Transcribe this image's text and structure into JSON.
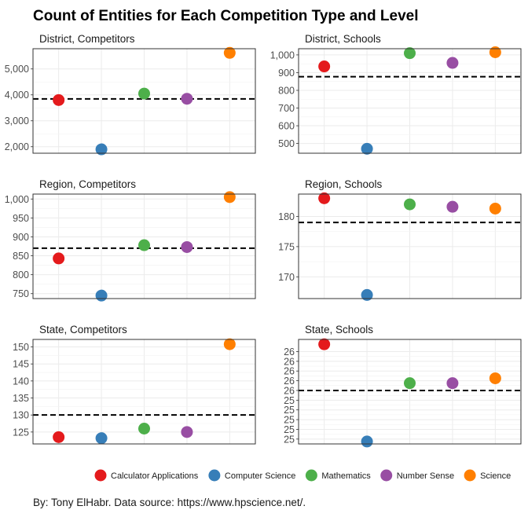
{
  "title": "Count of Entities for Each Competition Type and Level",
  "caption": "By: Tony ElHabr. Data source: https://www.hpscience.net/.",
  "chart_data": {
    "type": "scatter",
    "categories": [
      "Calculator Applications",
      "Computer Science",
      "Mathematics",
      "Number Sense",
      "Science"
    ],
    "colors": [
      "#e41a1c",
      "#377eb8",
      "#4daf4a",
      "#984ea3",
      "#ff7f00"
    ],
    "legend_position": "bottom",
    "grid": true,
    "panels": [
      {
        "label": "District, Competitors",
        "values": [
          3800,
          1900,
          4050,
          3850,
          5620
        ],
        "mean_line": 3844,
        "ylim": [
          1750,
          5780
        ],
        "ticks": [
          2000,
          3000,
          4000,
          5000
        ],
        "tick_labels": [
          "2,000",
          "3,000",
          "4,000",
          "5,000"
        ]
      },
      {
        "label": "District, Schools",
        "values": [
          935,
          470,
          1010,
          955,
          1015
        ],
        "mean_line": 877,
        "ylim": [
          445,
          1035
        ],
        "ticks": [
          500,
          600,
          700,
          800,
          900,
          1000
        ],
        "tick_labels": [
          "500",
          "600",
          "700",
          "800",
          "900",
          "1,000"
        ]
      },
      {
        "label": "Region, Competitors",
        "values": [
          843,
          745,
          878,
          873,
          1005
        ],
        "mean_line": 870,
        "ylim": [
          737,
          1013
        ],
        "ticks": [
          750,
          800,
          850,
          900,
          950,
          1000
        ],
        "tick_labels": [
          "750",
          "800",
          "850",
          "900",
          "950",
          "1,000"
        ]
      },
      {
        "label": "Region, Schools",
        "values": [
          183,
          167,
          182,
          181.6,
          181.3
        ],
        "mean_line": 179,
        "ylim": [
          166.4,
          183.7
        ],
        "ticks": [
          170,
          175,
          180
        ],
        "tick_labels": [
          "170",
          "175",
          "180"
        ]
      },
      {
        "label": "State, Competitors",
        "values": [
          123.5,
          123.2,
          126,
          125,
          150.8
        ],
        "mean_line": 130,
        "ylim": [
          121.5,
          152.2
        ],
        "ticks": [
          125,
          130,
          135,
          140,
          145,
          150
        ],
        "tick_labels": [
          "125",
          "130",
          "135",
          "140",
          "145",
          "150"
        ]
      },
      {
        "label": "State, Schools",
        "values": [
          26.75,
          24.75,
          25.95,
          25.95,
          26.05
        ],
        "mean_line": 25.8,
        "ylim": [
          24.7,
          26.85
        ],
        "ticks": [
          24.8,
          25.0,
          25.2,
          25.4,
          25.6,
          25.8,
          26.0,
          26.2,
          26.4,
          26.6
        ],
        "tick_labels": [
          "25",
          "25",
          "25",
          "25",
          "25",
          "26",
          "26",
          "26",
          "26",
          "26"
        ]
      }
    ]
  }
}
